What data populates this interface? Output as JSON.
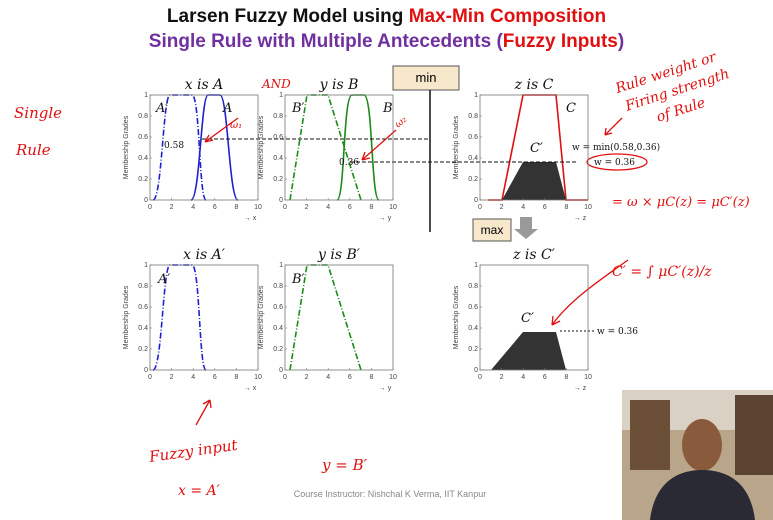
{
  "title": {
    "line1": [
      "Larsen Fuzzy Model using",
      "Max-Min Composition"
    ],
    "line2": [
      "Single Rule with Multiple Antecedents (",
      "Fuzzy Inputs",
      ")"
    ]
  },
  "plots": [
    {
      "title": "x is A",
      "ylabel": "Membership Grades",
      "xlabel": "→ x",
      "xticks": [
        0,
        2,
        4,
        6,
        8,
        10
      ],
      "yticks": [
        0,
        0.2,
        0.4,
        0.6,
        0.8,
        1
      ],
      "labels": [
        "A′",
        "A"
      ]
    },
    {
      "title": "y is B",
      "ylabel": "Membership Grades",
      "xlabel": "→ y",
      "xticks": [
        0,
        2,
        4,
        6,
        8,
        10
      ],
      "yticks": [
        0,
        0.2,
        0.4,
        0.6,
        0.8,
        1
      ],
      "labels": [
        "B′",
        "B"
      ]
    },
    {
      "title": "z is C",
      "ylabel": "Membership Grades",
      "xlabel": "→ z",
      "xticks": [
        0,
        2,
        4,
        6,
        8,
        10
      ],
      "yticks": [
        0,
        0.2,
        0.4,
        0.6,
        0.8,
        1
      ],
      "labels": [
        "C",
        "C′"
      ]
    },
    {
      "title": "x is A′",
      "ylabel": "Membership Grades",
      "xlabel": "→ x",
      "xticks": [
        0,
        2,
        4,
        6,
        8,
        10
      ],
      "yticks": [
        0,
        0.2,
        0.4,
        0.6,
        0.8,
        1
      ],
      "labels": [
        "A′"
      ]
    },
    {
      "title": "y is B′",
      "ylabel": "Membership Grades",
      "xlabel": "→ y",
      "xticks": [
        0,
        2,
        4,
        6,
        8,
        10
      ],
      "yticks": [
        0,
        0.2,
        0.4,
        0.6,
        0.8,
        1
      ],
      "labels": [
        "B′"
      ]
    },
    {
      "title": "z is C′",
      "ylabel": "Membership Grades",
      "xlabel": "→ z",
      "xticks": [
        0,
        2,
        4,
        6,
        8,
        10
      ],
      "yticks": [
        0,
        0.2,
        0.4,
        0.6,
        0.8,
        1
      ],
      "labels": [
        "C′"
      ]
    }
  ],
  "buttons": {
    "min": "min",
    "max": "max"
  },
  "annotations": {
    "value_a": "0.58",
    "value_b": "0.36",
    "w_min": "w = min(0.58,0.36)",
    "w_value": "w = 0.36",
    "w_value_bottom": "w = 0.36"
  },
  "handwriting": {
    "single": "Single",
    "rule": "Rule",
    "and": "AND",
    "w1": "ω₁",
    "w2": "ω₂",
    "rule_weight_1": "Rule weight or",
    "rule_weight_2": "Firing strength",
    "rule_weight_3": "of Rule",
    "formula_1": "= ω × μC(z) = μC′(z)",
    "formula_2": "C′ = ∫ μC′(z)/z",
    "fuzzy_input": "Fuzzy input",
    "x_eq": "x = A′",
    "y_eq": "y = B′"
  },
  "footer": "Course Instructor: Nishchal K Verma, IIT Kanpur"
}
